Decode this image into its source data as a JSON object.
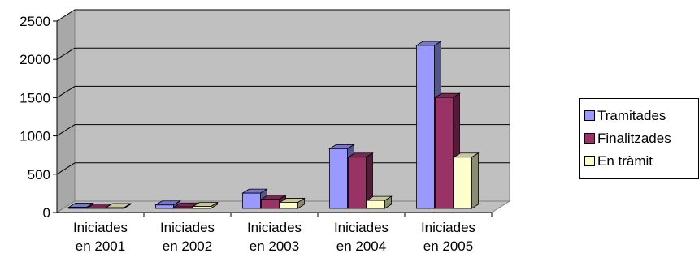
{
  "chart_data": {
    "type": "bar",
    "categories": [
      [
        "Iniciades",
        "en 2001"
      ],
      [
        "Iniciades",
        "en 2002"
      ],
      [
        "Iniciades",
        "en 2003"
      ],
      [
        "Iniciades",
        "en 2004"
      ],
      [
        "Iniciades",
        "en 2005"
      ]
    ],
    "series": [
      {
        "name": "Tramitades",
        "values": [
          15,
          45,
          200,
          780,
          2130
        ],
        "color": "#9999ff"
      },
      {
        "name": "Finalitzades",
        "values": [
          5,
          20,
          120,
          670,
          1450
        ],
        "color": "#993366"
      },
      {
        "name": "En tràmit",
        "values": [
          10,
          25,
          80,
          105,
          670
        ],
        "color": "#ffffcc"
      }
    ],
    "yticks": [
      "0",
      "500",
      "1000",
      "1500",
      "2000",
      "2500"
    ],
    "ylim": [
      0,
      2500
    ],
    "grid": true,
    "style": "3d-clustered",
    "legend_position": "right",
    "colors": {
      "plot_back_wall": "#c0c0c0",
      "floor": "#c0c0c0",
      "gridline": "#000000"
    }
  }
}
